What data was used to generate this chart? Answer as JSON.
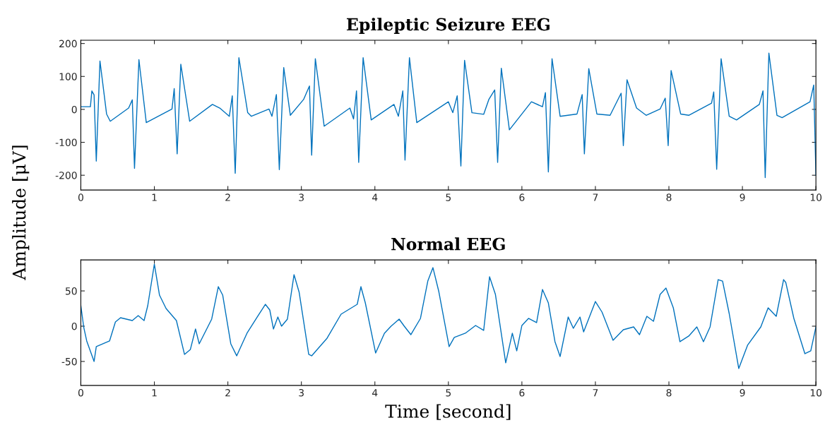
{
  "chart_data": [
    {
      "type": "line",
      "title": "Epileptic Seizure EEG",
      "ylabel": "Amplitude [μV]",
      "xlim": [
        0,
        10
      ],
      "xticks": [
        0,
        1,
        2,
        3,
        4,
        5,
        6,
        7,
        8,
        9,
        10
      ],
      "ylim": [
        -245,
        210
      ],
      "yticks": [
        -200,
        -100,
        0,
        100,
        200
      ],
      "grid": false,
      "series": [
        {
          "color": "#0072bd",
          "x": [
            0.0,
            0.13,
            0.15,
            0.18,
            0.21,
            0.26,
            0.35,
            0.4,
            0.65,
            0.7,
            0.73,
            0.79,
            0.89,
            1.24,
            1.27,
            1.31,
            1.36,
            1.48,
            1.79,
            1.89,
            2.02,
            2.06,
            2.1,
            2.15,
            2.27,
            2.32,
            2.56,
            2.6,
            2.66,
            2.7,
            2.76,
            2.85,
            3.03,
            3.11,
            3.14,
            3.19,
            3.31,
            3.66,
            3.71,
            3.75,
            3.78,
            3.84,
            3.95,
            4.26,
            4.32,
            4.38,
            4.41,
            4.47,
            4.57,
            5.0,
            5.06,
            5.12,
            5.17,
            5.22,
            5.32,
            5.48,
            5.55,
            5.63,
            5.67,
            5.72,
            5.83,
            6.13,
            6.28,
            6.32,
            6.36,
            6.41,
            6.52,
            6.75,
            6.82,
            6.85,
            6.91,
            7.02,
            7.2,
            7.35,
            7.38,
            7.43,
            7.56,
            7.69,
            7.88,
            7.95,
            7.99,
            8.03,
            8.16,
            8.27,
            8.58,
            8.61,
            8.65,
            8.71,
            8.82,
            8.92,
            9.23,
            9.28,
            9.31,
            9.36,
            9.47,
            9.54,
            9.92,
            9.97,
            10.0
          ],
          "values": [
            8,
            8,
            56,
            44,
            -157,
            147,
            -14,
            -36,
            4,
            29,
            -179,
            151,
            -40,
            1,
            63,
            -135,
            137,
            -36,
            15,
            4,
            -21,
            41,
            -194,
            157,
            -10,
            -21,
            1,
            -21,
            45,
            -183,
            127,
            -18,
            30,
            71,
            -139,
            154,
            -51,
            4,
            -29,
            56,
            -161,
            157,
            -32,
            15,
            -21,
            56,
            -154,
            157,
            -40,
            23,
            -10,
            41,
            -172,
            149,
            -10,
            -15,
            30,
            59,
            -161,
            125,
            -62,
            23,
            8,
            51,
            -190,
            154,
            -21,
            -14,
            45,
            -135,
            124,
            -14,
            -18,
            49,
            -110,
            90,
            4,
            -18,
            1,
            34,
            -110,
            118,
            -14,
            -18,
            19,
            53,
            -182,
            154,
            -21,
            -32,
            15,
            56,
            -207,
            171,
            -18,
            -25,
            23,
            74,
            -200
          ]
        }
      ]
    },
    {
      "type": "line",
      "title": "Normal EEG",
      "xlabel": "Time [second]",
      "xlim": [
        0,
        10
      ],
      "xticks": [
        0,
        1,
        2,
        3,
        4,
        5,
        6,
        7,
        8,
        9,
        10
      ],
      "ylim": [
        -84,
        94
      ],
      "yticks": [
        -50,
        0,
        50
      ],
      "grid": false,
      "series": [
        {
          "color": "#0072bd",
          "x": [
            0.0,
            0.04,
            0.08,
            0.18,
            0.21,
            0.39,
            0.47,
            0.54,
            0.7,
            0.78,
            0.86,
            0.91,
            1.0,
            1.07,
            1.16,
            1.3,
            1.41,
            1.49,
            1.56,
            1.61,
            1.78,
            1.87,
            1.93,
            2.04,
            2.12,
            2.26,
            2.4,
            2.51,
            2.57,
            2.62,
            2.68,
            2.73,
            2.81,
            2.9,
            2.97,
            3.1,
            3.14,
            3.35,
            3.54,
            3.76,
            3.81,
            3.87,
            4.01,
            4.13,
            4.22,
            4.33,
            4.4,
            4.49,
            4.62,
            4.72,
            4.79,
            4.87,
            5.01,
            5.08,
            5.23,
            5.37,
            5.48,
            5.56,
            5.64,
            5.78,
            5.87,
            5.93,
            6.0,
            6.09,
            6.2,
            6.28,
            6.36,
            6.45,
            6.52,
            6.63,
            6.7,
            6.79,
            6.84,
            7.0,
            7.09,
            7.24,
            7.38,
            7.52,
            7.6,
            7.7,
            7.79,
            7.88,
            7.96,
            8.06,
            8.15,
            8.27,
            8.38,
            8.47,
            8.56,
            8.67,
            8.73,
            8.82,
            8.95,
            9.07,
            9.25,
            9.35,
            9.46,
            9.56,
            9.59,
            9.7,
            9.85,
            9.93,
            10.0
          ],
          "values": [
            29,
            -2,
            -21,
            -50,
            -29,
            -21,
            6,
            12,
            8,
            15,
            8,
            29,
            88,
            44,
            25,
            8,
            -40,
            -33,
            -4,
            -25,
            10,
            56,
            44,
            -25,
            -42,
            -10,
            13,
            31,
            23,
            -4,
            13,
            0,
            10,
            73,
            48,
            -40,
            -42,
            -17,
            17,
            31,
            56,
            33,
            -38,
            -10,
            0,
            10,
            0,
            -12,
            11,
            64,
            83,
            49,
            -29,
            -16,
            -10,
            1,
            -6,
            70,
            45,
            -52,
            -10,
            -35,
            1,
            11,
            5,
            52,
            33,
            -22,
            -43,
            13,
            -3,
            13,
            -8,
            35,
            20,
            -20,
            -5,
            -1,
            -12,
            14,
            7,
            45,
            54,
            26,
            -22,
            -14,
            -1,
            -22,
            -1,
            66,
            64,
            18,
            -60,
            -27,
            -1,
            26,
            14,
            66,
            62,
            11,
            -39,
            -35,
            -1
          ]
        }
      ]
    }
  ]
}
